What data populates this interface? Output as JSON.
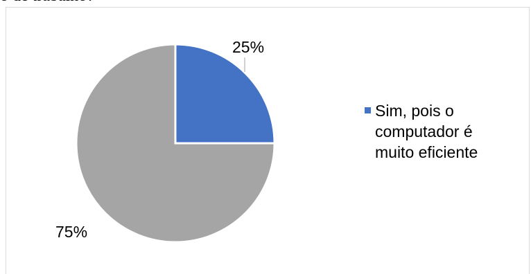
{
  "caption": "o de trabalho?",
  "chart_data": {
    "type": "pie",
    "slices": [
      {
        "label": "Sim, pois o computador é muito eficiente",
        "value": 25,
        "display": "25%",
        "color": "#4472c4"
      },
      {
        "label": "",
        "value": 75,
        "display": "75%",
        "color": "#a5a5a5"
      }
    ],
    "legend": {
      "placement": "right",
      "entries": [
        {
          "name": "Sim, pois o computador é muito eficiente",
          "color": "#4472c4"
        }
      ]
    }
  }
}
